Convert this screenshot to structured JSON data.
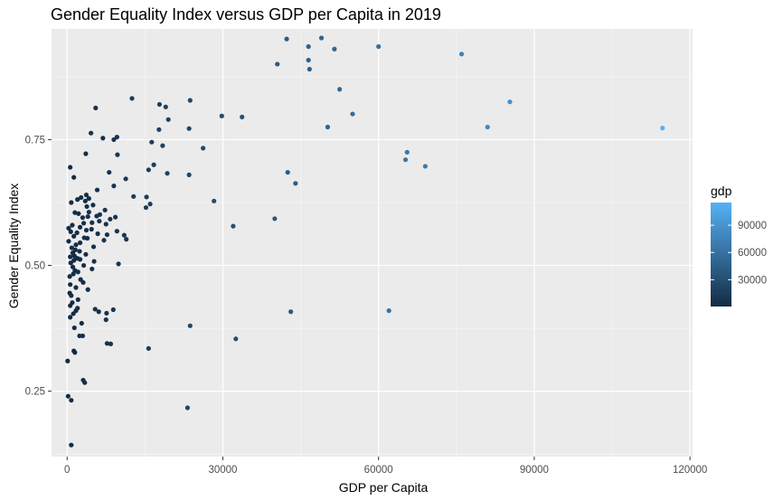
{
  "chart_data": {
    "type": "scatter",
    "title": "Gender Equality Index versus GDP per Capita in 2019",
    "xlabel": "GDP per Capita",
    "ylabel": "Gender Equality Index",
    "xlim": [
      -3000,
      120500
    ],
    "ylim": [
      0.12,
      0.97
    ],
    "x_ticks": [
      0,
      30000,
      60000,
      90000,
      120000
    ],
    "x_tick_labels": [
      "0",
      "30000",
      "60000",
      "90000",
      "120000"
    ],
    "y_ticks": [
      0.25,
      0.5,
      0.75
    ],
    "y_tick_labels": [
      "0.25",
      "0.50",
      "0.75"
    ],
    "grid": true,
    "legend": {
      "title": "gdp",
      "position": "right",
      "range": [
        500,
        115000
      ],
      "ticks": [
        30000,
        60000,
        90000
      ],
      "tick_labels": [
        "30000",
        "60000",
        "90000"
      ],
      "color_low": "#132B43",
      "color_high": "#56B1F7"
    },
    "colors": {
      "panel": "#ebebeb",
      "grid_major": "#ffffff",
      "grid_minor": "#f5f5f5"
    },
    "points": [
      [
        42300,
        0.95
      ],
      [
        49000,
        0.952
      ],
      [
        46500,
        0.935
      ],
      [
        51500,
        0.93
      ],
      [
        60000,
        0.935
      ],
      [
        40500,
        0.9
      ],
      [
        46500,
        0.908
      ],
      [
        46700,
        0.89
      ],
      [
        76000,
        0.92
      ],
      [
        52500,
        0.85
      ],
      [
        12500,
        0.832
      ],
      [
        23700,
        0.828
      ],
      [
        85300,
        0.825
      ],
      [
        17800,
        0.82
      ],
      [
        19000,
        0.815
      ],
      [
        5500,
        0.813
      ],
      [
        55000,
        0.801
      ],
      [
        29800,
        0.797
      ],
      [
        33700,
        0.795
      ],
      [
        19500,
        0.79
      ],
      [
        50200,
        0.775
      ],
      [
        81000,
        0.775
      ],
      [
        114700,
        0.773
      ],
      [
        23500,
        0.772
      ],
      [
        17700,
        0.77
      ],
      [
        4600,
        0.763
      ],
      [
        9600,
        0.755
      ],
      [
        6900,
        0.753
      ],
      [
        9000,
        0.75
      ],
      [
        16300,
        0.745
      ],
      [
        18400,
        0.738
      ],
      [
        26200,
        0.733
      ],
      [
        65500,
        0.725
      ],
      [
        3600,
        0.722
      ],
      [
        9700,
        0.72
      ],
      [
        16700,
        0.7
      ],
      [
        65200,
        0.71
      ],
      [
        69000,
        0.697
      ],
      [
        600,
        0.695
      ],
      [
        15700,
        0.69
      ],
      [
        42500,
        0.685
      ],
      [
        19300,
        0.683
      ],
      [
        23500,
        0.68
      ],
      [
        8100,
        0.685
      ],
      [
        1300,
        0.675
      ],
      [
        11300,
        0.672
      ],
      [
        44000,
        0.663
      ],
      [
        9000,
        0.658
      ],
      [
        5800,
        0.65
      ],
      [
        3700,
        0.64
      ],
      [
        12800,
        0.637
      ],
      [
        15300,
        0.636
      ],
      [
        2700,
        0.635
      ],
      [
        4200,
        0.633
      ],
      [
        2000,
        0.631
      ],
      [
        3500,
        0.628
      ],
      [
        28300,
        0.628
      ],
      [
        800,
        0.625
      ],
      [
        16000,
        0.622
      ],
      [
        5000,
        0.62
      ],
      [
        3800,
        0.617
      ],
      [
        15200,
        0.615
      ],
      [
        7300,
        0.61
      ],
      [
        4200,
        0.606
      ],
      [
        1500,
        0.605
      ],
      [
        2200,
        0.603
      ],
      [
        6300,
        0.601
      ],
      [
        5700,
        0.598
      ],
      [
        4000,
        0.597
      ],
      [
        9300,
        0.596
      ],
      [
        3000,
        0.595
      ],
      [
        40000,
        0.593
      ],
      [
        8300,
        0.592
      ],
      [
        6200,
        0.588
      ],
      [
        4800,
        0.585
      ],
      [
        3200,
        0.584
      ],
      [
        7500,
        0.582
      ],
      [
        1000,
        0.58
      ],
      [
        32000,
        0.578
      ],
      [
        2500,
        0.576
      ],
      [
        300,
        0.574
      ],
      [
        4700,
        0.572
      ],
      [
        3700,
        0.57
      ],
      [
        9600,
        0.568
      ],
      [
        700,
        0.567
      ],
      [
        1900,
        0.565
      ],
      [
        5900,
        0.563
      ],
      [
        7700,
        0.561
      ],
      [
        11000,
        0.56
      ],
      [
        1300,
        0.558
      ],
      [
        3300,
        0.555
      ],
      [
        3900,
        0.554
      ],
      [
        11400,
        0.552
      ],
      [
        7100,
        0.55
      ],
      [
        300,
        0.548
      ],
      [
        2500,
        0.545
      ],
      [
        1700,
        0.541
      ],
      [
        5100,
        0.537
      ],
      [
        900,
        0.535
      ],
      [
        1600,
        0.531
      ],
      [
        2400,
        0.528
      ],
      [
        1100,
        0.525
      ],
      [
        3600,
        0.522
      ],
      [
        1400,
        0.519
      ],
      [
        600,
        0.517
      ],
      [
        2000,
        0.514
      ],
      [
        2500,
        0.512
      ],
      [
        1300,
        0.51
      ],
      [
        5200,
        0.508
      ],
      [
        700,
        0.505
      ],
      [
        9900,
        0.503
      ],
      [
        3200,
        0.5
      ],
      [
        1100,
        0.497
      ],
      [
        4800,
        0.493
      ],
      [
        1500,
        0.49
      ],
      [
        2100,
        0.487
      ],
      [
        1200,
        0.483
      ],
      [
        500,
        0.478
      ],
      [
        2600,
        0.472
      ],
      [
        3100,
        0.466
      ],
      [
        600,
        0.462
      ],
      [
        1700,
        0.456
      ],
      [
        4000,
        0.452
      ],
      [
        500,
        0.445
      ],
      [
        800,
        0.44
      ],
      [
        2100,
        0.432
      ],
      [
        1000,
        0.426
      ],
      [
        600,
        0.42
      ],
      [
        2000,
        0.415
      ],
      [
        1700,
        0.41
      ],
      [
        8900,
        0.412
      ],
      [
        6100,
        0.408
      ],
      [
        5400,
        0.413
      ],
      [
        43100,
        0.408
      ],
      [
        62000,
        0.41
      ],
      [
        1200,
        0.404
      ],
      [
        7600,
        0.405
      ],
      [
        600,
        0.397
      ],
      [
        2800,
        0.385
      ],
      [
        7500,
        0.392
      ],
      [
        23700,
        0.38
      ],
      [
        1400,
        0.376
      ],
      [
        3000,
        0.36
      ],
      [
        2400,
        0.36
      ],
      [
        32500,
        0.354
      ],
      [
        7700,
        0.345
      ],
      [
        8400,
        0.344
      ],
      [
        15700,
        0.335
      ],
      [
        1300,
        0.33
      ],
      [
        1500,
        0.327
      ],
      [
        100,
        0.31
      ],
      [
        3100,
        0.272
      ],
      [
        3400,
        0.267
      ],
      [
        200,
        0.24
      ],
      [
        800,
        0.232
      ],
      [
        23200,
        0.217
      ],
      [
        800,
        0.143
      ]
    ]
  }
}
